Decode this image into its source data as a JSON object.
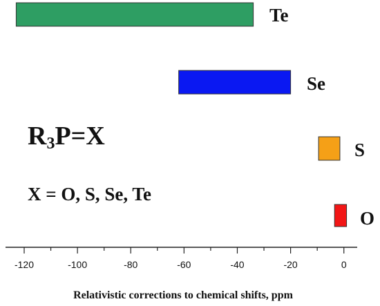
{
  "chart_data": {
    "type": "bar",
    "orientation": "horizontal-range",
    "xlabel": "Relativistic corrections to chemical shifts, ppm",
    "xlim": [
      -127,
      5
    ],
    "ticks": {
      "major": [
        -120,
        -100,
        -80,
        -60,
        -40,
        -20,
        0
      ],
      "major_labels": [
        "-120",
        "-100",
        "-80",
        "-60",
        "-40",
        "-20",
        "0"
      ],
      "minor_step": 10
    },
    "grid": false,
    "legend": "none",
    "series": [
      {
        "label": "Te",
        "start": -123,
        "end": -34,
        "color": "#2e9e63"
      },
      {
        "label": "Se",
        "start": -62,
        "end": -20,
        "color": "#0a18f2"
      },
      {
        "label": "S",
        "start": -9.5,
        "end": -1.5,
        "color": "#f5a017"
      },
      {
        "label": "O",
        "start": -3.5,
        "end": 1,
        "color": "#f21616"
      }
    ]
  },
  "annotations": {
    "formula": {
      "main": "R",
      "sub": "3",
      "rest": "P=X"
    },
    "x_definition": "X = O, S, Se, Te"
  }
}
